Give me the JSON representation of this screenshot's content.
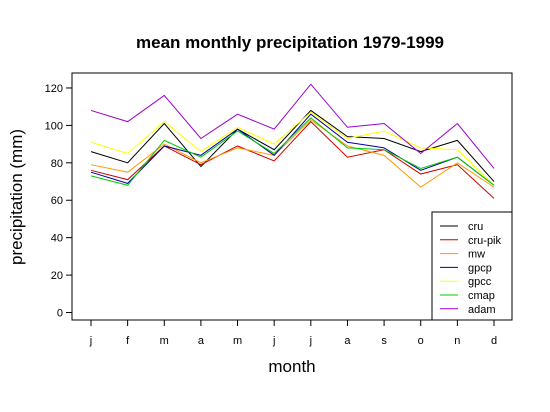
{
  "chart_data": {
    "type": "line",
    "title": "mean monthly precipitation 1979-1999",
    "xlabel": "month",
    "ylabel": "precipitation (mm)",
    "categories": [
      "j",
      "f",
      "m",
      "a",
      "m",
      "j",
      "j",
      "a",
      "s",
      "o",
      "n",
      "d"
    ],
    "yticks": [
      0,
      20,
      40,
      60,
      80,
      100,
      120
    ],
    "ylim": [
      -4,
      128
    ],
    "grid": false,
    "legend_position": "bottom-right",
    "series": [
      {
        "name": "cru",
        "color": "#000000",
        "values": [
          86,
          80,
          101,
          78,
          98,
          87,
          108,
          94,
          93,
          86,
          92,
          70
        ]
      },
      {
        "name": "cru-pik",
        "color": "#cc0000",
        "values": [
          76,
          71,
          89,
          79,
          89,
          81,
          102,
          83,
          87,
          74,
          79,
          61
        ]
      },
      {
        "name": "mw",
        "color": "#ff9900",
        "values": [
          79,
          75,
          90,
          80,
          88,
          84,
          103,
          89,
          84,
          67,
          80,
          67
        ]
      },
      {
        "name": "gpcp",
        "color": "#000099",
        "values": [
          75,
          69,
          89,
          84,
          98,
          84,
          106,
          91,
          88,
          76,
          83,
          68
        ]
      },
      {
        "name": "gpcc",
        "color": "#ffff00",
        "values": [
          91,
          85,
          102,
          86,
          99,
          90,
          107,
          93,
          97,
          88,
          87,
          68
        ]
      },
      {
        "name": "cmap",
        "color": "#00cc00",
        "values": [
          73,
          68,
          92,
          83,
          97,
          85,
          104,
          88,
          87,
          77,
          83,
          68
        ]
      },
      {
        "name": "adam",
        "color": "#9900cc",
        "values": [
          108,
          102,
          116,
          93,
          106,
          98,
          122,
          99,
          101,
          85,
          101,
          77
        ]
      }
    ]
  }
}
